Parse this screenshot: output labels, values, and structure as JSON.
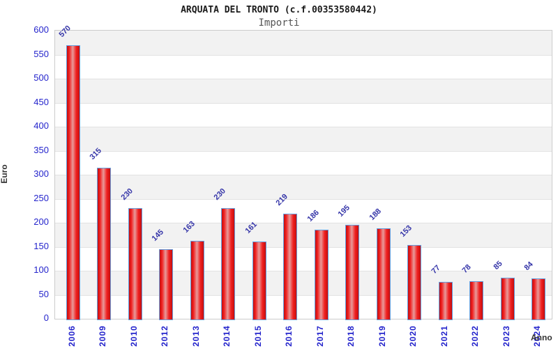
{
  "chart_data": {
    "type": "bar",
    "title": "ARQUATA DEL TRONTO (c.f.00353580442)",
    "subtitle": "Importi",
    "xlabel": "Anno",
    "ylabel": "Euro",
    "categories": [
      "2006",
      "2009",
      "2010",
      "2012",
      "2013",
      "2014",
      "2015",
      "2016",
      "2017",
      "2018",
      "2019",
      "2020",
      "2021",
      "2022",
      "2023",
      "2024"
    ],
    "values": [
      570,
      315,
      230,
      145,
      163,
      230,
      161,
      219,
      186,
      195,
      188,
      153,
      77,
      78,
      85,
      84
    ],
    "ylim": [
      0,
      600
    ],
    "ytick_step": 50,
    "legend": "none",
    "grid": "horizontal-bands-alternating",
    "colors": {
      "bar_fill_edge": "#c40e0e",
      "bar_fill_bright": "#f02020",
      "bar_fill_center": "#e89a9a",
      "bar_border": "#64a0e0",
      "value_label": "#3434a8",
      "tick_label": "#2424cc",
      "band_gray": "#f2f2f2",
      "band_white": "#ffffff",
      "gridline": "#e2e2e2",
      "plot_border": "#cccccc",
      "title_color": "#1a1a1a",
      "subtitle_color": "#555555",
      "axis_title_color": "#333333"
    }
  }
}
